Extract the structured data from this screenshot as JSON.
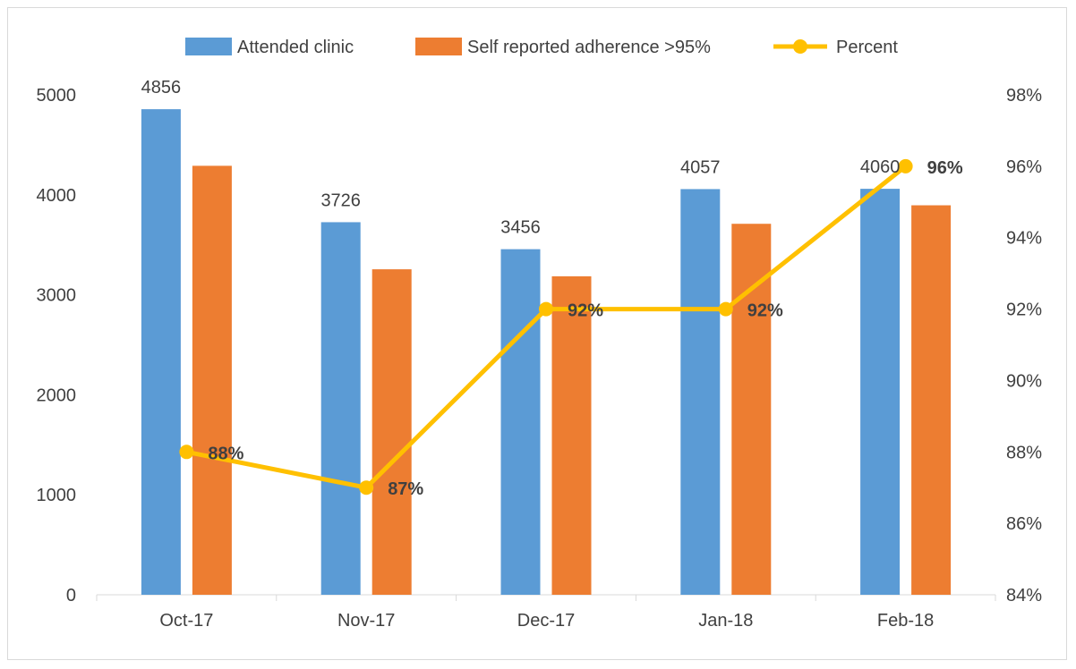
{
  "chart_data": {
    "type": "bar",
    "title": "",
    "categories": [
      "Oct-17",
      "Nov-17",
      "Dec-17",
      "Jan-18",
      "Feb-18"
    ],
    "series": [
      {
        "name": "Attended clinic",
        "kind": "bar",
        "axis": "left",
        "color": "#5b9bd5",
        "values": [
          4856,
          3726,
          3456,
          4057,
          4060
        ],
        "labels": [
          "4856",
          "3726",
          "3456",
          "4057",
          "4060"
        ]
      },
      {
        "name": "Self reported adherence >95%",
        "kind": "bar",
        "axis": "left",
        "color": "#ed7d31",
        "values": [
          4290,
          3255,
          3185,
          3710,
          3895
        ]
      },
      {
        "name": "Percent",
        "kind": "line",
        "axis": "right",
        "color": "#ffc000",
        "values": [
          88,
          87,
          92,
          92,
          96
        ],
        "labels": [
          "88%",
          "87%",
          "92%",
          "92%",
          "96%"
        ]
      }
    ],
    "y_left": {
      "min": 0,
      "max": 5000,
      "ticks": [
        "0",
        "1000",
        "2000",
        "3000",
        "4000",
        "5000"
      ]
    },
    "y_right": {
      "min": 84,
      "max": 98,
      "ticks": [
        "84%",
        "86%",
        "88%",
        "90%",
        "92%",
        "94%",
        "96%",
        "98%"
      ]
    },
    "legend": {
      "position": "top",
      "entries": [
        "Attended clinic",
        "Self reported adherence >95%",
        "Percent"
      ]
    },
    "grid": false
  }
}
